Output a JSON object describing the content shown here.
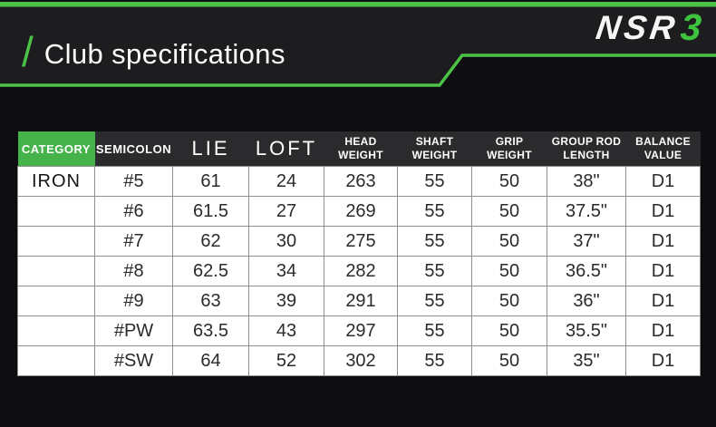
{
  "header": {
    "slash": "/",
    "title": "Club specifications",
    "logo": {
      "text": "NSR",
      "number": "3"
    }
  },
  "colors": {
    "accent_green": "#4cc246",
    "category_green": "#45b34a",
    "panel_dark": "#1d1d1f",
    "table_header_dark": "#2b2b2d",
    "page_black": "#0e0e10"
  },
  "table": {
    "columns": [
      {
        "id": "category",
        "label": "CATEGORY"
      },
      {
        "id": "semicolon",
        "label": "SEMICOLON"
      },
      {
        "id": "lie",
        "label": "LIE"
      },
      {
        "id": "loft",
        "label": "LOFT"
      },
      {
        "id": "head_weight",
        "label": "HEAD\nWEIGHT"
      },
      {
        "id": "shaft_weight",
        "label": "SHAFT\nWEIGHT"
      },
      {
        "id": "grip_weight",
        "label": "GRIP\nWEIGHT"
      },
      {
        "id": "group_rod_length",
        "label": "GROUP ROD\nLENGTH"
      },
      {
        "id": "balance_value",
        "label": "BALANCE\nVALUE"
      }
    ],
    "rows": [
      [
        "IRON",
        "#5",
        "61",
        "24",
        "263",
        "55",
        "50",
        "38\"",
        "D1"
      ],
      [
        "",
        "#6",
        "61.5",
        "27",
        "269",
        "55",
        "50",
        "37.5\"",
        "D1"
      ],
      [
        "",
        "#7",
        "62",
        "30",
        "275",
        "55",
        "50",
        "37\"",
        "D1"
      ],
      [
        "",
        "#8",
        "62.5",
        "34",
        "282",
        "55",
        "50",
        "36.5\"",
        "D1"
      ],
      [
        "",
        "#9",
        "63",
        "39",
        "291",
        "55",
        "50",
        "36\"",
        "D1"
      ],
      [
        "",
        "#PW",
        "63.5",
        "43",
        "297",
        "55",
        "50",
        "35.5\"",
        "D1"
      ],
      [
        "",
        "#SW",
        "64",
        "52",
        "302",
        "55",
        "50",
        "35\"",
        "D1"
      ]
    ]
  }
}
